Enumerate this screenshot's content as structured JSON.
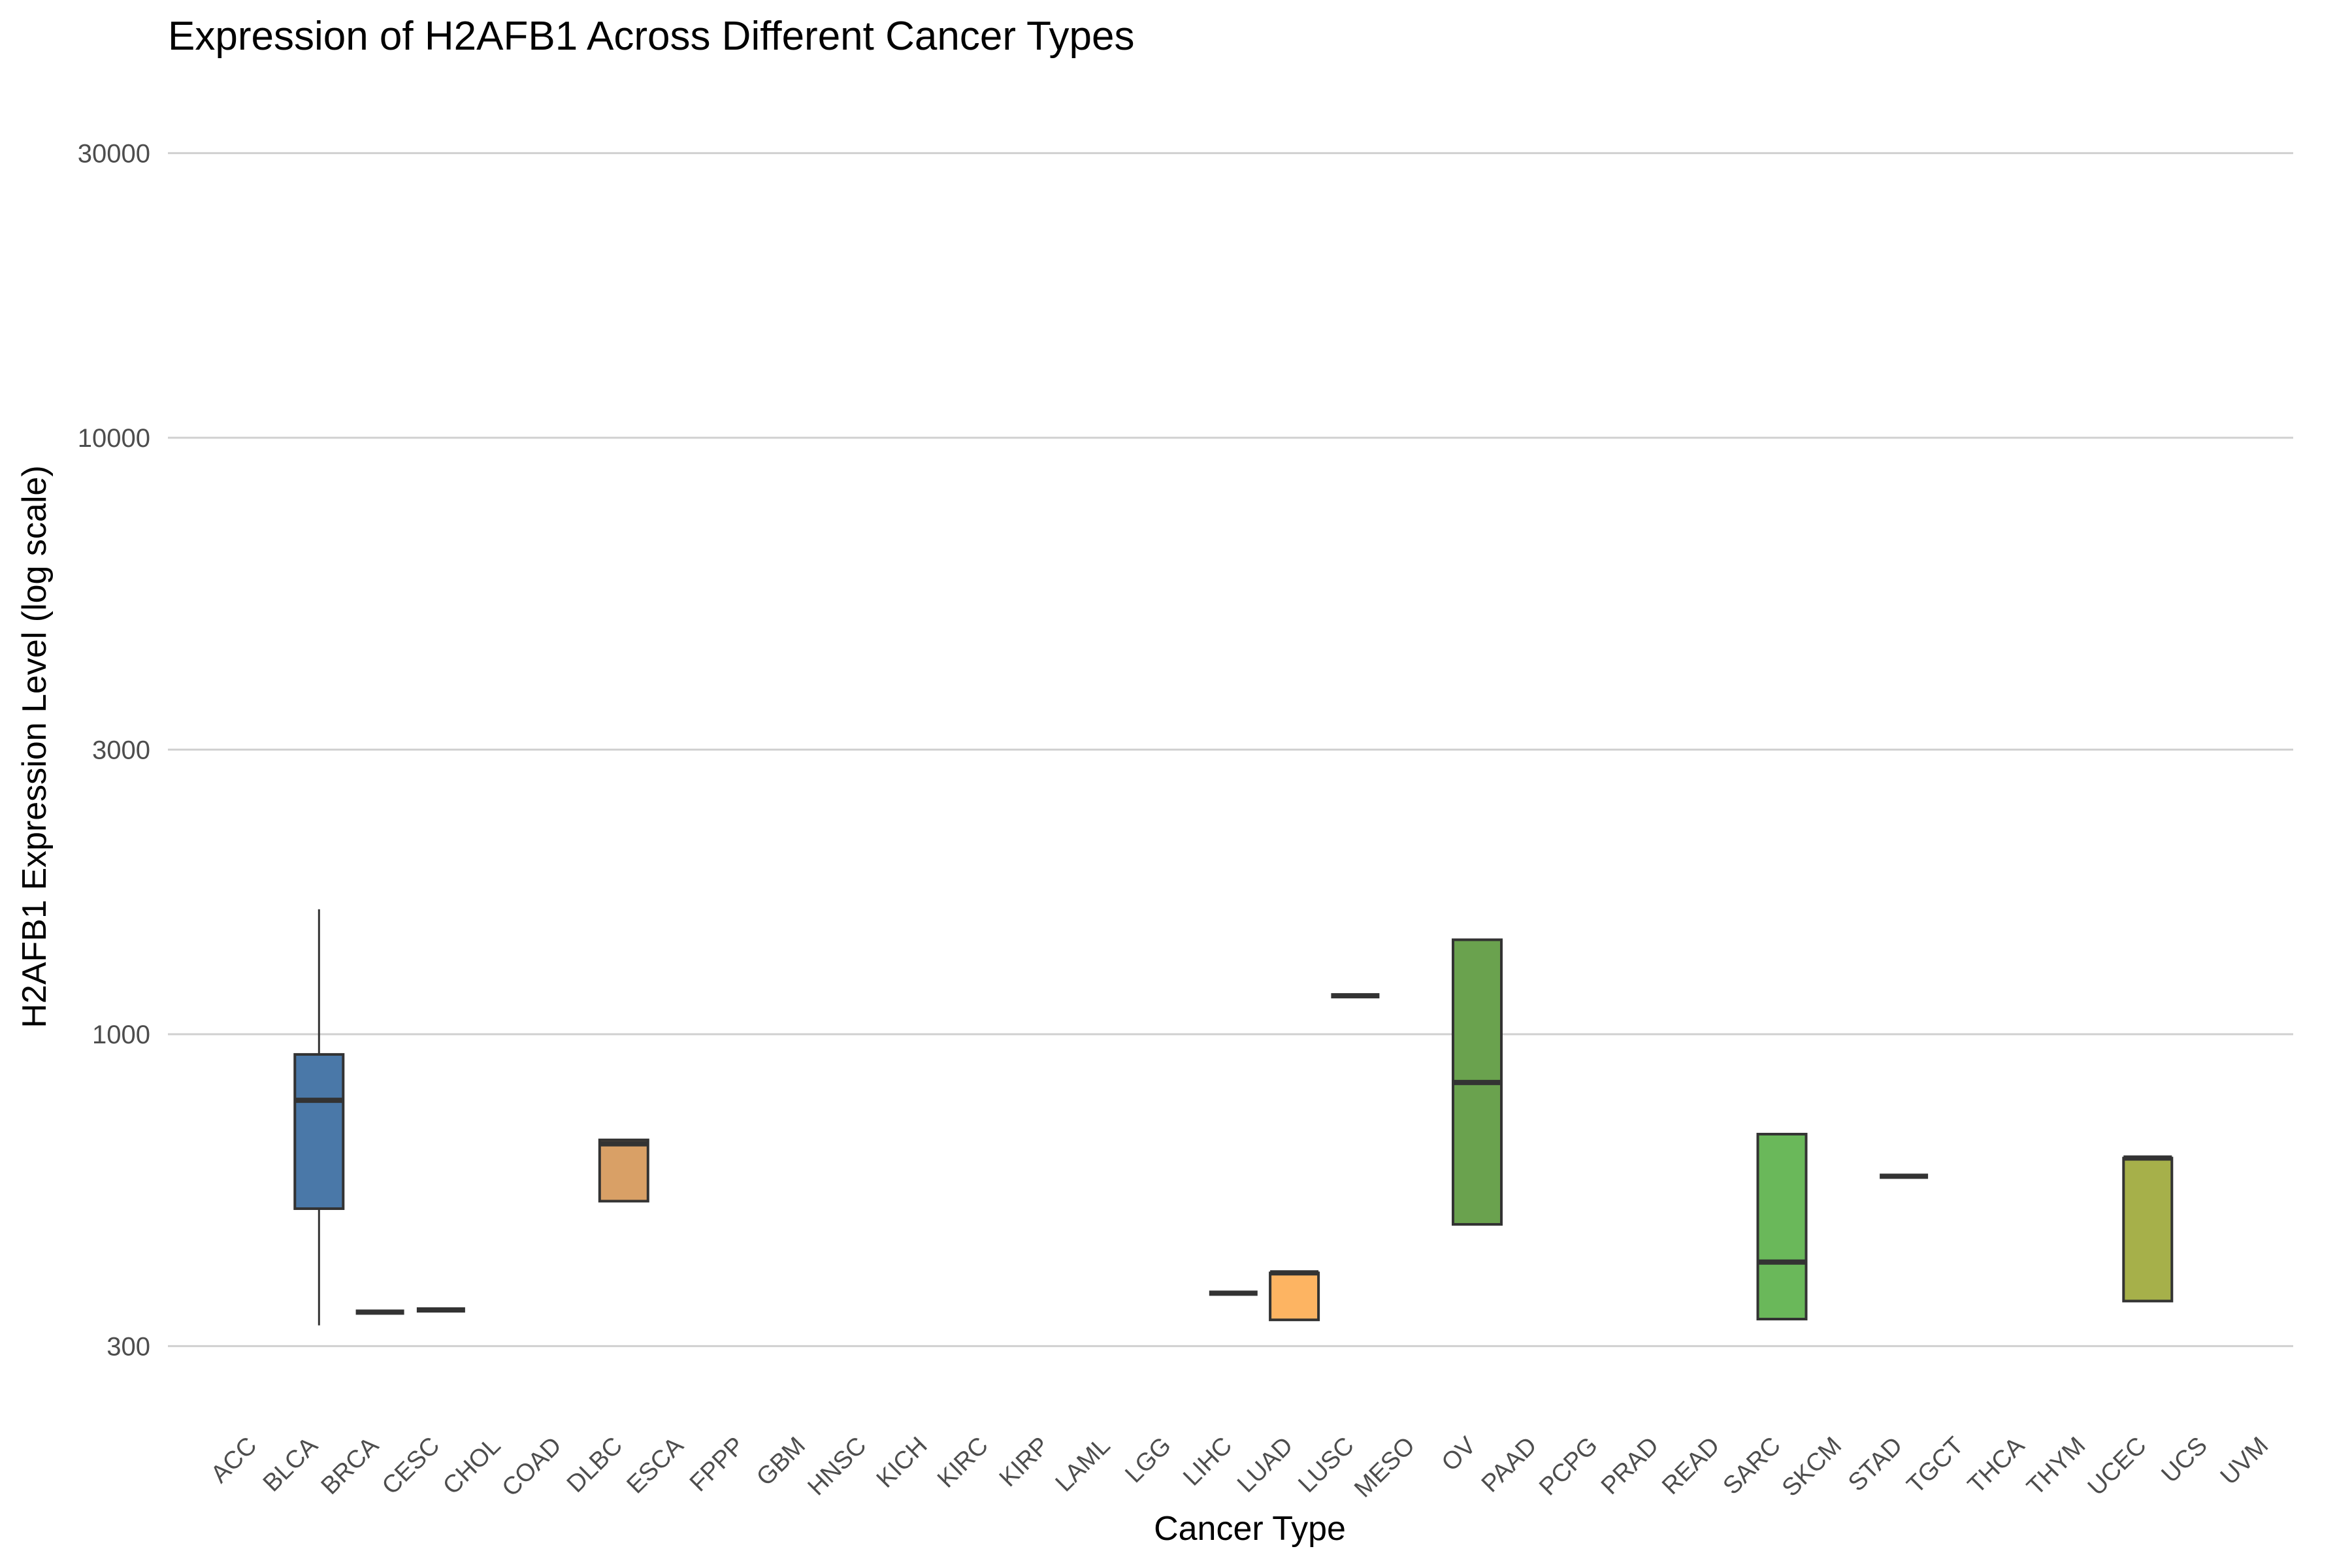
{
  "chart_data": {
    "type": "box",
    "title": "Expression of H2AFB1 Across Different Cancer Types",
    "xlabel": "Cancer Type",
    "ylabel": "H2AFB1 Expression Level (log scale)",
    "y_scale": "log",
    "ylim": [
      260,
      38000
    ],
    "y_ticks": [
      300,
      1000,
      3000,
      10000,
      30000
    ],
    "y_tick_labels": [
      "300",
      "1000",
      "3000",
      "10000",
      "30000"
    ],
    "grid": "horizontal",
    "legend": "none",
    "categories": [
      "ACC",
      "BLCA",
      "BRCA",
      "CESC",
      "CHOL",
      "COAD",
      "DLBC",
      "ESCA",
      "FPPP",
      "GBM",
      "HNSC",
      "KICH",
      "KIRC",
      "KIRP",
      "LAML",
      "LGG",
      "LIHC",
      "LUAD",
      "LUSC",
      "MESO",
      "OV",
      "PAAD",
      "PCPG",
      "PRAD",
      "READ",
      "SARC",
      "SKCM",
      "STAD",
      "TGCT",
      "THCA",
      "THYM",
      "UCEC",
      "UCS",
      "UVM"
    ],
    "boxes": [
      {
        "category": "BLCA",
        "q1": 510,
        "median": 775,
        "q3": 925,
        "whisker_low": 325,
        "whisker_high": 1620,
        "color": "#4a78a8"
      },
      {
        "category": "BRCA",
        "q1": 342,
        "median": 342,
        "q3": 342,
        "color": "#4a78a8"
      },
      {
        "category": "CESC",
        "q1": 345,
        "median": 345,
        "q3": 345,
        "color": "#4a78a8"
      },
      {
        "category": "DLBC",
        "q1": 525,
        "median": 655,
        "q3": 665,
        "color": "#d9a066"
      },
      {
        "category": "LIHC",
        "q1": 368,
        "median": 368,
        "q3": 368,
        "color": "#f4a261"
      },
      {
        "category": "LUAD",
        "q1": 332,
        "median": 398,
        "q3": 398,
        "color": "#fdb462"
      },
      {
        "category": "LUSC",
        "q1": 1160,
        "median": 1160,
        "q3": 1160,
        "color": "#fdb462"
      },
      {
        "category": "OV",
        "q1": 480,
        "median": 830,
        "q3": 1440,
        "color": "#6aa24e"
      },
      {
        "category": "SARC",
        "q1": 333,
        "median": 415,
        "q3": 680,
        "color": "#6ab85a"
      },
      {
        "category": "STAD",
        "q1": 578,
        "median": 578,
        "q3": 578,
        "color": "#6ab85a"
      },
      {
        "category": "UCEC",
        "q1": 357,
        "median": 620,
        "q3": 620,
        "color": "#a6b04a"
      }
    ]
  }
}
